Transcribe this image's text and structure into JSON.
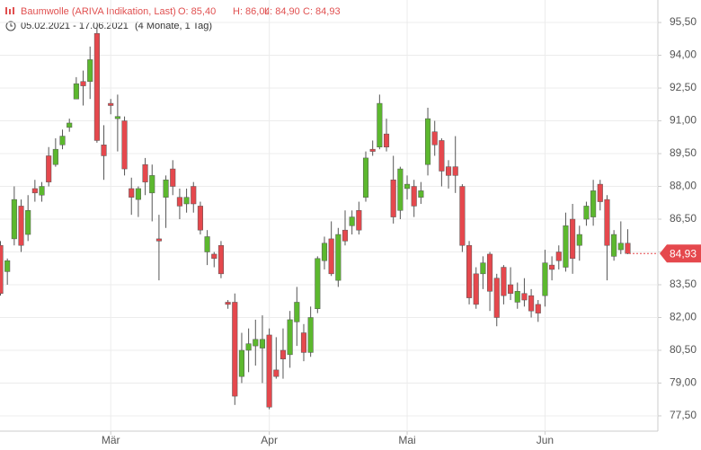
{
  "header": {
    "title": "Baumwolle (ARIVA Indikation, Last)",
    "open": "O: 85,40",
    "high": "H: 86,04",
    "low": "L: 84,90",
    "close": "C: 84,93",
    "range": "05.02.2021 - 17.06.2021",
    "duration": "(4 Monate, 1 Tag)"
  },
  "chart_data": {
    "type": "candlestick",
    "up_color": "#5cb82e",
    "down_color": "#e5484d",
    "grid": true,
    "last_price": {
      "value": 84.93,
      "label": "84,93"
    },
    "categories": [
      null,
      null,
      null,
      null,
      null,
      null,
      null,
      null,
      null,
      null,
      null,
      null,
      null,
      null,
      null,
      null,
      "Mär",
      null,
      null,
      null,
      null,
      null,
      null,
      null,
      null,
      null,
      null,
      null,
      null,
      null,
      null,
      null,
      null,
      null,
      null,
      null,
      null,
      null,
      null,
      "Apr",
      null,
      null,
      null,
      null,
      null,
      null,
      null,
      null,
      null,
      null,
      null,
      null,
      null,
      null,
      null,
      null,
      null,
      null,
      null,
      "Mai",
      null,
      null,
      null,
      null,
      null,
      null,
      null,
      null,
      null,
      null,
      null,
      null,
      null,
      null,
      null,
      null,
      null,
      null,
      null,
      "Jun",
      null,
      null,
      null,
      null,
      null,
      null,
      null,
      null,
      null,
      null,
      null,
      null
    ],
    "open": [
      85.3,
      84.1,
      85.6,
      87.1,
      85.8,
      87.9,
      87.6,
      89.4,
      89.0,
      89.9,
      90.7,
      92.0,
      92.8,
      92.8,
      95.0,
      89.9,
      91.8,
      91.1,
      91.0,
      87.9,
      87.4,
      89.0,
      87.7,
      85.6,
      87.5,
      88.8,
      87.5,
      87.2,
      88.0,
      87.1,
      85.0,
      84.9,
      85.3,
      82.7,
      82.7,
      79.3,
      80.5,
      80.7,
      80.6,
      81.2,
      79.6,
      80.5,
      80.3,
      81.8,
      81.3,
      80.4,
      82.4,
      84.6,
      85.6,
      83.7,
      86.0,
      86.2,
      86.9,
      87.5,
      89.7,
      89.8,
      90.4,
      88.3,
      86.9,
      87.9,
      88.0,
      87.5,
      89.0,
      90.5,
      90.1,
      88.9,
      88.9,
      88.0,
      85.3,
      84.0,
      84.0,
      84.9,
      83.8,
      84.3,
      83.5,
      82.7,
      83.1,
      83.0,
      82.6,
      83.0,
      84.4,
      85.0,
      84.3,
      86.5,
      85.3,
      86.5,
      86.6,
      88.1,
      87.4,
      84.8,
      85.1,
      85.4
    ],
    "high": [
      85.5,
      84.7,
      88.0,
      87.4,
      87.6,
      88.3,
      88.2,
      89.8,
      90.2,
      90.6,
      91.1,
      93.0,
      93.3,
      94.4,
      95.3,
      90.8,
      92.0,
      92.2,
      91.2,
      88.4,
      88.0,
      89.3,
      89.0,
      86.7,
      88.5,
      89.2,
      87.9,
      87.9,
      88.2,
      87.3,
      86.0,
      85.0,
      85.5,
      82.8,
      83.1,
      81.3,
      81.5,
      81.9,
      82.1,
      81.5,
      81.1,
      81.5,
      82.3,
      83.4,
      81.7,
      82.5,
      84.8,
      85.7,
      86.4,
      86.1,
      86.9,
      86.9,
      87.3,
      89.6,
      90.1,
      92.2,
      91.1,
      89.4,
      88.9,
      88.5,
      88.3,
      88.2,
      91.6,
      91.0,
      90.2,
      89.2,
      90.3,
      88.1,
      85.5,
      84.3,
      84.8,
      85.0,
      84.0,
      84.4,
      84.3,
      83.6,
      83.8,
      83.3,
      82.8,
      85.1,
      84.8,
      85.3,
      86.8,
      87.2,
      86.2,
      87.3,
      88.3,
      88.3,
      87.6,
      86.0,
      86.4,
      86.04
    ],
    "low": [
      83.0,
      83.5,
      85.3,
      85.0,
      85.5,
      87.3,
      87.3,
      88.0,
      88.9,
      89.7,
      90.5,
      92.0,
      91.7,
      92.0,
      90.0,
      88.3,
      91.3,
      89.6,
      88.5,
      86.7,
      86.6,
      87.6,
      86.4,
      83.7,
      86.1,
      87.6,
      86.5,
      86.8,
      86.8,
      85.8,
      84.4,
      84.3,
      83.8,
      82.4,
      78.0,
      79.0,
      79.5,
      79.8,
      79.0,
      77.8,
      79.2,
      79.2,
      79.7,
      80.7,
      80.0,
      80.2,
      82.2,
      84.2,
      83.9,
      83.4,
      85.3,
      85.8,
      85.8,
      87.3,
      89.4,
      89.7,
      89.6,
      86.3,
      86.5,
      87.4,
      86.6,
      87.2,
      88.5,
      89.4,
      88.0,
      87.9,
      87.7,
      85.0,
      82.6,
      82.4,
      83.3,
      82.3,
      81.6,
      82.6,
      82.8,
      82.4,
      82.5,
      82.0,
      81.8,
      82.5,
      83.7,
      84.2,
      84.1,
      84.0,
      84.6,
      86.2,
      86.2,
      86.9,
      83.7,
      84.6,
      84.9,
      84.9
    ],
    "close": [
      83.1,
      84.6,
      87.4,
      85.3,
      86.9,
      87.7,
      88.0,
      88.2,
      89.7,
      90.3,
      90.9,
      92.7,
      92.6,
      93.8,
      90.1,
      89.4,
      91.7,
      91.2,
      88.8,
      87.5,
      87.9,
      88.2,
      88.5,
      85.5,
      88.3,
      88.0,
      87.1,
      87.5,
      87.2,
      86.0,
      85.7,
      84.7,
      84.0,
      82.6,
      78.4,
      80.5,
      80.8,
      81.0,
      81.0,
      77.9,
      79.3,
      80.1,
      81.9,
      82.7,
      80.4,
      82.0,
      84.7,
      85.4,
      84.0,
      85.8,
      85.5,
      86.6,
      86.0,
      89.3,
      89.6,
      91.8,
      89.8,
      86.6,
      88.8,
      88.1,
      87.1,
      87.8,
      91.1,
      89.9,
      88.7,
      88.5,
      88.5,
      85.3,
      82.9,
      82.6,
      84.5,
      83.2,
      82.0,
      83.0,
      83.1,
      83.2,
      82.8,
      82.3,
      82.2,
      84.5,
      84.2,
      84.6,
      86.2,
      84.7,
      85.8,
      87.1,
      87.8,
      87.3,
      85.3,
      85.8,
      85.4,
      84.93
    ],
    "ylim": [
      76.8,
      96.53
    ],
    "yticks": [
      {
        "value": 77.5,
        "label": "77,50"
      },
      {
        "value": 79,
        "label": "79,00"
      },
      {
        "value": 80.5,
        "label": "80,50"
      },
      {
        "value": 82,
        "label": "82,00"
      },
      {
        "value": 83.5,
        "label": "83,50"
      },
      {
        "value": 85,
        "label": "85,00"
      },
      {
        "value": 86.5,
        "label": "86,50"
      },
      {
        "value": 88,
        "label": "88,00"
      },
      {
        "value": 89.5,
        "label": "89,50"
      },
      {
        "value": 91,
        "label": "91,00"
      },
      {
        "value": 92.5,
        "label": "92,50"
      },
      {
        "value": 94,
        "label": "94,00"
      },
      {
        "value": 95.5,
        "label": "95,50"
      }
    ]
  }
}
